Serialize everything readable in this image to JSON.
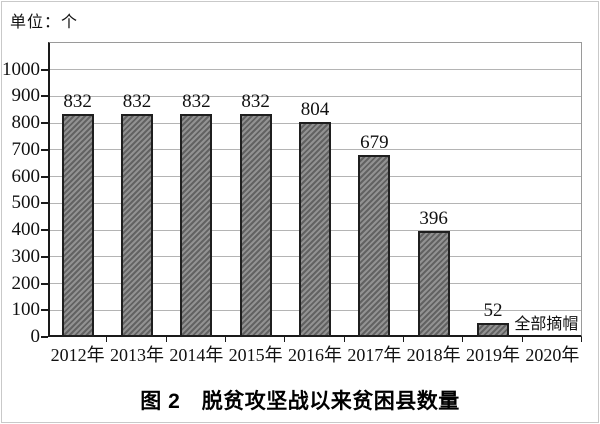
{
  "unit_label": "单位：个",
  "caption": "图 2　脱贫攻坚战以来贫困县数量",
  "chart_data": {
    "type": "bar",
    "title": "图 2 脱贫攻坚战以来贫困县数量",
    "unit": "个",
    "categories": [
      "2012年",
      "2013年",
      "2014年",
      "2015年",
      "2016年",
      "2017年",
      "2018年",
      "2019年",
      "2020年"
    ],
    "values": [
      832,
      832,
      832,
      832,
      804,
      679,
      396,
      52,
      null
    ],
    "annotations": [
      {
        "category": "2020年",
        "text": "全部摘帽"
      }
    ],
    "xlabel": "",
    "ylabel": "单位：个",
    "ylim": [
      0,
      1100
    ],
    "yticks": [
      0,
      100,
      200,
      300,
      400,
      500,
      600,
      700,
      800,
      900,
      1000
    ],
    "grid": true,
    "legend": null,
    "colors": {
      "bar_fill": "#929292",
      "bar_hatch": "#626262",
      "bar_border": "#1f1f1f",
      "axis": "#1a1a1a",
      "gridline": "#b4b4b4",
      "frame": "#9a9a9a",
      "text": "#111111"
    }
  }
}
